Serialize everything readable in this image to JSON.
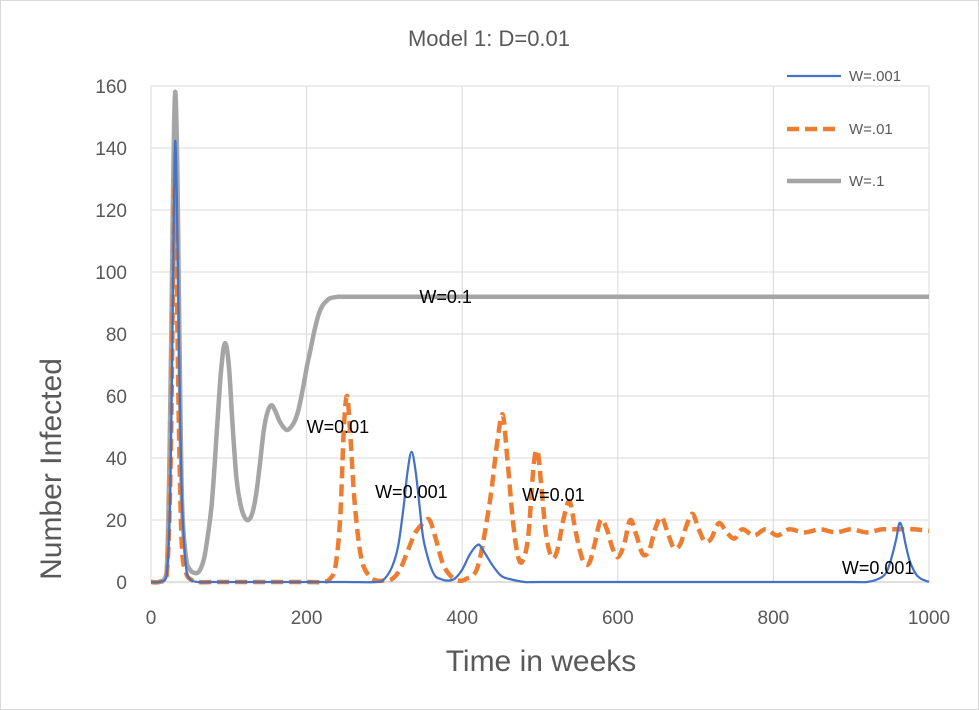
{
  "chart_data": {
    "type": "line",
    "title": "Model 1: D=0.01",
    "xlabel": "Time in weeks",
    "ylabel": "Number Infected",
    "xlim": [
      0,
      1000
    ],
    "ylim": [
      0,
      160
    ],
    "xticks": [
      0,
      200,
      400,
      600,
      800,
      1000
    ],
    "yticks": [
      0,
      20,
      40,
      60,
      80,
      100,
      120,
      140,
      160
    ],
    "grid": true,
    "legend_position": "top-right",
    "series": [
      {
        "name": "W=.001",
        "color": "#4472C4",
        "dash": "solid",
        "x": [
          0,
          10,
          20,
          25,
          28,
          31,
          34,
          37,
          40,
          45,
          50,
          60,
          80,
          100,
          150,
          200,
          250,
          290,
          300,
          310,
          318,
          325,
          330,
          335,
          340,
          345,
          350,
          358,
          365,
          372,
          380,
          390,
          400,
          410,
          420,
          425,
          430,
          440,
          450,
          460,
          480,
          500,
          600,
          700,
          800,
          900,
          920,
          935,
          945,
          952,
          958,
          962,
          966,
          970,
          975,
          980,
          985,
          990,
          995,
          1000
        ],
        "y": [
          0,
          0,
          2,
          30,
          90,
          142,
          110,
          60,
          25,
          5,
          1,
          0,
          0,
          0,
          0,
          0,
          0,
          0,
          1,
          5,
          12,
          25,
          36,
          42,
          36,
          25,
          14,
          6,
          2,
          1,
          0.5,
          1,
          4,
          9,
          12,
          11,
          9,
          5,
          2,
          1,
          0,
          0,
          0,
          0,
          0,
          0,
          0,
          1,
          3,
          8,
          14,
          19,
          17,
          12,
          7,
          4,
          2,
          1,
          0.5,
          0
        ]
      },
      {
        "name": "W=.01",
        "color": "#ED7D31",
        "dash": "dashed",
        "x": [
          0,
          10,
          20,
          25,
          28,
          31,
          34,
          37,
          40,
          45,
          50,
          60,
          80,
          100,
          150,
          200,
          220,
          230,
          237,
          243,
          248,
          252,
          256,
          262,
          270,
          280,
          290,
          300,
          310,
          320,
          330,
          340,
          350,
          358,
          366,
          375,
          385,
          395,
          405,
          420,
          435,
          445,
          452,
          458,
          465,
          472,
          478,
          485,
          492,
          497,
          502,
          508,
          515,
          522,
          530,
          538,
          546,
          555,
          563,
          570,
          578,
          586,
          593,
          600,
          608,
          616,
          624,
          632,
          640,
          648,
          656,
          664,
          672,
          680,
          688,
          696,
          704,
          712,
          720,
          730,
          740,
          750,
          760,
          775,
          790,
          805,
          820,
          840,
          860,
          880,
          900,
          920,
          940,
          960,
          980,
          1000
        ],
        "y": [
          0,
          0,
          2,
          35,
          90,
          130,
          80,
          35,
          10,
          3,
          1,
          0,
          0,
          0,
          0,
          0,
          0,
          1,
          5,
          20,
          50,
          60,
          48,
          25,
          8,
          2,
          0.5,
          0.5,
          1,
          4,
          10,
          16,
          19,
          20,
          14,
          6,
          2,
          0.5,
          1,
          5,
          25,
          45,
          54,
          40,
          20,
          8,
          7,
          15,
          38,
          42,
          30,
          15,
          8,
          10,
          20,
          26,
          16,
          7,
          6,
          12,
          20,
          17,
          11,
          8,
          12,
          20,
          15,
          9,
          10,
          17,
          21,
          16,
          11,
          12,
          18,
          22,
          17,
          13,
          14,
          19,
          16,
          14,
          17,
          15,
          17,
          15,
          17,
          16,
          17,
          16,
          17,
          16,
          17,
          17,
          17,
          16.5
        ]
      },
      {
        "name": "W=.1",
        "color": "#A5A5A5",
        "dash": "solid",
        "x": [
          0,
          10,
          20,
          25,
          28,
          31,
          34,
          37,
          40,
          45,
          50,
          55,
          60,
          65,
          70,
          78,
          85,
          90,
          95,
          100,
          105,
          110,
          115,
          120,
          125,
          130,
          135,
          140,
          145,
          150,
          155,
          160,
          165,
          170,
          175,
          180,
          185,
          190,
          195,
          200,
          205,
          210,
          215,
          220,
          225,
          230,
          240,
          250,
          300,
          400,
          500,
          600,
          700,
          800,
          900,
          1000
        ],
        "y": [
          0,
          0,
          3,
          60,
          120,
          158,
          130,
          70,
          25,
          8,
          4,
          3,
          3,
          5,
          10,
          25,
          50,
          68,
          77,
          70,
          50,
          33,
          25,
          21,
          20,
          22,
          28,
          38,
          49,
          55,
          57,
          55,
          52,
          50,
          49,
          50,
          52,
          56,
          62,
          69,
          75,
          81,
          86,
          89,
          90.5,
          91.5,
          92,
          92,
          92,
          92,
          92,
          92,
          92,
          92,
          92,
          92
        ]
      }
    ],
    "annotations": [
      {
        "text": "W=0.1",
        "x": 345,
        "y": 92
      },
      {
        "text": "W=0.01",
        "x": 200,
        "y": 50
      },
      {
        "text": "W=0.001",
        "x": 288,
        "y": 29
      },
      {
        "text": "W=0.01",
        "x": 477,
        "y": 28
      },
      {
        "text": "W=0.001",
        "x": 888,
        "y": 4.5
      }
    ]
  }
}
